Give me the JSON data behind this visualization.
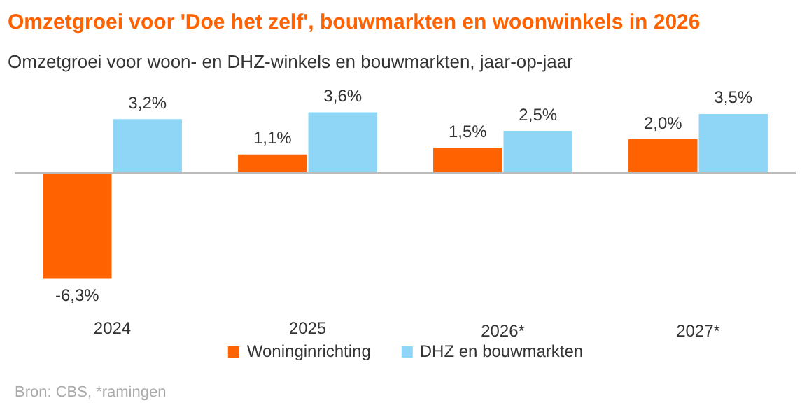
{
  "chart_data": {
    "type": "bar",
    "title": "Omzetgroei voor 'Doe het zelf', bouwmarkten en woonwinkels in 2026",
    "subtitle": "Omzetgroei voor woon- en DHZ-winkels en bouwmarkten, jaar-op-jaar",
    "categories": [
      "2024",
      "2025",
      "2026*",
      "2027*"
    ],
    "series": [
      {
        "name": "Woninginrichting",
        "color": "#ff6200",
        "values": [
          -6.3,
          1.1,
          1.5,
          2.0
        ],
        "value_labels": [
          "-6,3%",
          "1,1%",
          "1,5%",
          "2,0%"
        ]
      },
      {
        "name": "DHZ en bouwmarkten",
        "color": "#8fd6f6",
        "values": [
          3.2,
          3.6,
          2.5,
          3.5
        ],
        "value_labels": [
          "3,2%",
          "3,6%",
          "2,5%",
          "3,5%"
        ]
      }
    ],
    "legend": "bottom",
    "grid": false,
    "annotations": [
      "Bron: CBS, *ramingen"
    ]
  }
}
